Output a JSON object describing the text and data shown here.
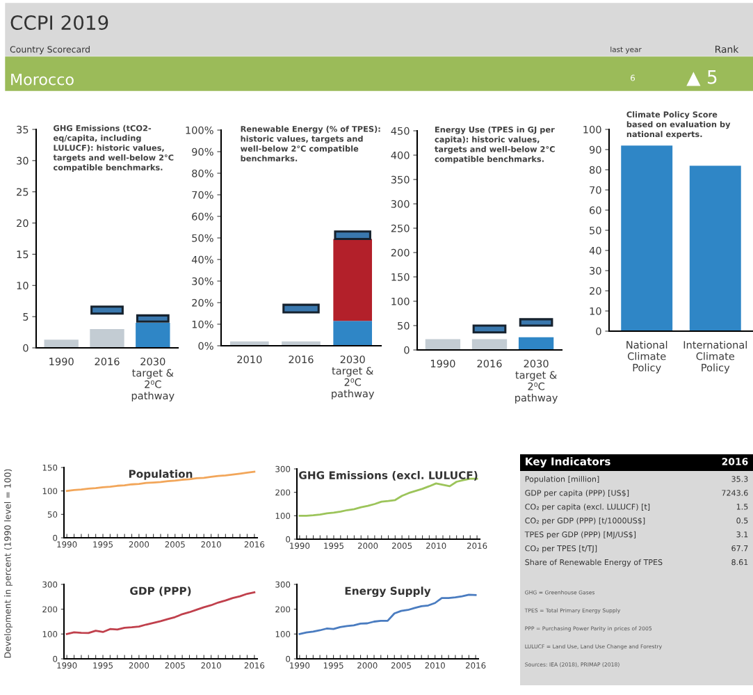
{
  "chart_data": [
    {
      "type": "other",
      "title": "CCPI 2019",
      "subtitle": "Country Scorecard",
      "annotations": [
        "Morocco",
        "last year",
        "6",
        "Rank",
        "▲ 5"
      ]
    },
    {
      "type": "bar",
      "title": "GHG Emissions (tCO2-\neq/capita, including\nLULUCF): historic values,\ntargets and well-below 2°C\ncompatible benchmarks.",
      "categories": [
        "1990",
        "2016",
        "2030\ntarget &\n2⁰C\npathway"
      ],
      "ylim": [
        0,
        35
      ],
      "yticks": [
        0,
        5,
        10,
        15,
        20,
        25,
        30,
        35
      ],
      "series": [
        {
          "color": "#c3ccd3",
          "values": [
            1.3,
            3.0,
            null
          ]
        },
        {
          "color": "#2f86c6",
          "values": [
            null,
            null,
            4.0
          ]
        },
        {
          "color": "#3a78ae",
          "values": [
            null,
            1.1,
            1.0
          ],
          "base": [
            null,
            5.5,
            4.2
          ]
        }
      ]
    },
    {
      "type": "bar",
      "title": "Renewable Energy (% of TPES):\nhistoric values, targets and\nwell-below 2°C compatible\nbenchmarks.",
      "categories": [
        "2010",
        "2016",
        "2030\ntarget &\n2⁰C\npathway"
      ],
      "ylim": [
        0,
        100
      ],
      "yticks": [
        {
          "value": 0,
          "label": "0%"
        },
        {
          "value": 10,
          "label": "10%"
        },
        {
          "value": 20,
          "label": "20%"
        },
        {
          "value": 30,
          "label": "30%"
        },
        {
          "value": 40,
          "label": "40%"
        },
        {
          "value": 50,
          "label": "50%"
        },
        {
          "value": 60,
          "label": "60%"
        },
        {
          "value": 70,
          "label": "70%"
        },
        {
          "value": 80,
          "label": "80%"
        },
        {
          "value": 90,
          "label": "90%"
        },
        {
          "value": 100,
          "label": "100%"
        }
      ],
      "series": [
        {
          "color": "#c3ccd3",
          "values": [
            2,
            2,
            null
          ]
        },
        {
          "color": "#2f86c6",
          "values": [
            null,
            null,
            11.5
          ]
        },
        {
          "color": "#b3202a",
          "values": [
            null,
            null,
            38
          ],
          "base": [
            null,
            null,
            11.5
          ]
        },
        {
          "color": "#3a78ae",
          "values": [
            null,
            3.5,
            3.5
          ],
          "base": [
            null,
            15.5,
            49.5
          ]
        }
      ]
    },
    {
      "type": "bar",
      "title": "Energy Use (TPES in GJ per\ncapita): historic values,\ntargets and well-below 2°C\ncompatible benchmarks.",
      "categories": [
        "1990",
        "2016",
        "2030\ntarget &\n2⁰C\npathway"
      ],
      "ylim": [
        0,
        450
      ],
      "yticks": [
        0,
        50,
        100,
        150,
        200,
        250,
        300,
        350,
        400,
        450
      ],
      "series": [
        {
          "color": "#c3ccd3",
          "values": [
            22,
            22,
            null
          ]
        },
        {
          "color": "#2f86c6",
          "values": [
            null,
            null,
            26
          ]
        },
        {
          "color": "#3a78ae",
          "values": [
            null,
            14,
            13
          ],
          "base": [
            null,
            36,
            50
          ]
        }
      ]
    },
    {
      "type": "bar",
      "title": "Climate Policy Score\nbased on evaluation by\nnational experts.",
      "categories": [
        "National\nClimate\nPolicy",
        "International\nClimate\nPolicy"
      ],
      "ylim": [
        0,
        100
      ],
      "yticks": [
        0,
        10,
        20,
        30,
        40,
        50,
        60,
        70,
        80,
        90,
        100
      ],
      "series": [
        {
          "color": "#2f86c6",
          "values": [
            92,
            82
          ]
        }
      ]
    },
    {
      "type": "line",
      "title": "Population",
      "ylabel": "Development in percent (1990 level = 100)",
      "x": [
        1990,
        1991,
        1992,
        1993,
        1994,
        1995,
        1996,
        1997,
        1998,
        1999,
        2000,
        2001,
        2002,
        2003,
        2004,
        2005,
        2006,
        2007,
        2008,
        2009,
        2010,
        2011,
        2012,
        2013,
        2014,
        2015,
        2016
      ],
      "xlim": [
        1989.6,
        2016.4
      ],
      "xticks": [
        1990,
        {
          "value": 1991,
          "label": null
        },
        {
          "value": 1992,
          "label": null
        },
        {
          "value": 1993,
          "label": null
        },
        {
          "value": 1994,
          "label": null
        },
        1995,
        {
          "value": 1996,
          "label": null
        },
        {
          "value": 1997,
          "label": null
        },
        {
          "value": 1998,
          "label": null
        },
        {
          "value": 1999,
          "label": null
        },
        2000,
        {
          "value": 2001,
          "label": null
        },
        {
          "value": 2002,
          "label": null
        },
        {
          "value": 2003,
          "label": null
        },
        {
          "value": 2004,
          "label": null
        },
        2005,
        {
          "value": 2006,
          "label": null
        },
        {
          "value": 2007,
          "label": null
        },
        {
          "value": 2008,
          "label": null
        },
        {
          "value": 2009,
          "label": null
        },
        2010,
        {
          "value": 2011,
          "label": null
        },
        {
          "value": 2012,
          "label": null
        },
        {
          "value": 2013,
          "label": null
        },
        {
          "value": 2014,
          "label": null
        },
        {
          "value": 2015,
          "label": null
        },
        2016
      ],
      "ylim": [
        0,
        150
      ],
      "yticks": [
        0,
        50,
        100,
        150
      ],
      "series": [
        {
          "color": "#f2a65a",
          "values": [
            100,
            102,
            103,
            105,
            106,
            108,
            109,
            111,
            112,
            114,
            115,
            117,
            118,
            119,
            121,
            122,
            124,
            125,
            127,
            128,
            130,
            132,
            133,
            135,
            137,
            139,
            141
          ]
        }
      ]
    },
    {
      "type": "line",
      "title": "GHG Emissions (excl. LULUCF)",
      "x": [
        1990,
        1991,
        1992,
        1993,
        1994,
        1995,
        1996,
        1997,
        1998,
        1999,
        2000,
        2001,
        2002,
        2003,
        2004,
        2005,
        2006,
        2007,
        2008,
        2009,
        2010,
        2011,
        2012,
        2013,
        2014,
        2015,
        2016
      ],
      "xlim": [
        1989.6,
        2016.4
      ],
      "xticks": [
        1990,
        {
          "value": 1991,
          "label": null
        },
        {
          "value": 1992,
          "label": null
        },
        {
          "value": 1993,
          "label": null
        },
        {
          "value": 1994,
          "label": null
        },
        1995,
        {
          "value": 1996,
          "label": null
        },
        {
          "value": 1997,
          "label": null
        },
        {
          "value": 1998,
          "label": null
        },
        {
          "value": 1999,
          "label": null
        },
        2000,
        {
          "value": 2001,
          "label": null
        },
        {
          "value": 2002,
          "label": null
        },
        {
          "value": 2003,
          "label": null
        },
        {
          "value": 2004,
          "label": null
        },
        2005,
        {
          "value": 2006,
          "label": null
        },
        {
          "value": 2007,
          "label": null
        },
        {
          "value": 2008,
          "label": null
        },
        {
          "value": 2009,
          "label": null
        },
        2010,
        {
          "value": 2011,
          "label": null
        },
        {
          "value": 2012,
          "label": null
        },
        {
          "value": 2013,
          "label": null
        },
        {
          "value": 2014,
          "label": null
        },
        {
          "value": 2015,
          "label": null
        },
        2016
      ],
      "ylim": [
        0,
        300
      ],
      "yticks": [
        0,
        100,
        200,
        300
      ],
      "series": [
        {
          "color": "#9cc45a",
          "values": [
            100,
            100,
            102,
            105,
            110,
            113,
            118,
            124,
            128,
            136,
            142,
            150,
            160,
            163,
            167,
            185,
            197,
            206,
            215,
            226,
            238,
            232,
            226,
            245,
            252,
            258,
            258
          ]
        }
      ]
    },
    {
      "type": "other",
      "title": "Key Indicators",
      "subtitle": "2016",
      "categories": [
        "Population [million]",
        "GDP per capita (PPP) [US$]",
        "CO₂ per capita (excl. LULUCF) [t]",
        "CO₂ per GDP (PPP) [t/1000US$]",
        "TPES per GDP (PPP) [MJ/US$]",
        "CO₂ per TPES [t/TJ]",
        "Share of Renewable Energy of TPES"
      ],
      "value_labels": [
        "35.3",
        "7243.6",
        "1.5",
        "0.5",
        "3.1",
        "67.7",
        "8.61"
      ],
      "annotations": [
        "GHG = Greenhouse Gases",
        "TPES = Total Primary Energy Supply",
        "PPP = Purchasing Power Parity in prices of 2005",
        "LULUCF = Land Use, Land Use Change and Forestry",
        "Sources: IEA (2018), PRIMAP (2018)"
      ]
    },
    {
      "type": "line",
      "title": "GDP (PPP)",
      "x": [
        1990,
        1991,
        1992,
        1993,
        1994,
        1995,
        1996,
        1997,
        1998,
        1999,
        2000,
        2001,
        2002,
        2003,
        2004,
        2005,
        2006,
        2007,
        2008,
        2009,
        2010,
        2011,
        2012,
        2013,
        2014,
        2015,
        2016
      ],
      "xlim": [
        1989.6,
        2016.4
      ],
      "xticks": [
        1990,
        {
          "value": 1991,
          "label": null
        },
        {
          "value": 1992,
          "label": null
        },
        {
          "value": 1993,
          "label": null
        },
        {
          "value": 1994,
          "label": null
        },
        1995,
        {
          "value": 1996,
          "label": null
        },
        {
          "value": 1997,
          "label": null
        },
        {
          "value": 1998,
          "label": null
        },
        {
          "value": 1999,
          "label": null
        },
        2000,
        {
          "value": 2001,
          "label": null
        },
        {
          "value": 2002,
          "label": null
        },
        {
          "value": 2003,
          "label": null
        },
        {
          "value": 2004,
          "label": null
        },
        2005,
        {
          "value": 2006,
          "label": null
        },
        {
          "value": 2007,
          "label": null
        },
        {
          "value": 2008,
          "label": null
        },
        {
          "value": 2009,
          "label": null
        },
        2010,
        {
          "value": 2011,
          "label": null
        },
        {
          "value": 2012,
          "label": null
        },
        {
          "value": 2013,
          "label": null
        },
        {
          "value": 2014,
          "label": null
        },
        {
          "value": 2015,
          "label": null
        },
        2016
      ],
      "ylim": [
        0,
        300
      ],
      "yticks": [
        0,
        100,
        200,
        300
      ],
      "series": [
        {
          "color": "#c0404c",
          "values": [
            100,
            107,
            105,
            104,
            113,
            108,
            120,
            118,
            125,
            127,
            130,
            138,
            145,
            152,
            160,
            168,
            180,
            188,
            198,
            208,
            216,
            227,
            235,
            245,
            252,
            262,
            268
          ]
        }
      ]
    },
    {
      "type": "line",
      "title": "Energy Supply",
      "x": [
        1990,
        1991,
        1992,
        1993,
        1994,
        1995,
        1996,
        1997,
        1998,
        1999,
        2000,
        2001,
        2002,
        2003,
        2004,
        2005,
        2006,
        2007,
        2008,
        2009,
        2010,
        2011,
        2012,
        2013,
        2014,
        2015,
        2016
      ],
      "xlim": [
        1989.6,
        2016.4
      ],
      "xticks": [
        1990,
        {
          "value": 1991,
          "label": null
        },
        {
          "value": 1992,
          "label": null
        },
        {
          "value": 1993,
          "label": null
        },
        {
          "value": 1994,
          "label": null
        },
        1995,
        {
          "value": 1996,
          "label": null
        },
        {
          "value": 1997,
          "label": null
        },
        {
          "value": 1998,
          "label": null
        },
        {
          "value": 1999,
          "label": null
        },
        2000,
        {
          "value": 2001,
          "label": null
        },
        {
          "value": 2002,
          "label": null
        },
        {
          "value": 2003,
          "label": null
        },
        {
          "value": 2004,
          "label": null
        },
        2005,
        {
          "value": 2006,
          "label": null
        },
        {
          "value": 2007,
          "label": null
        },
        {
          "value": 2008,
          "label": null
        },
        {
          "value": 2009,
          "label": null
        },
        2010,
        {
          "value": 2011,
          "label": null
        },
        {
          "value": 2012,
          "label": null
        },
        {
          "value": 2013,
          "label": null
        },
        {
          "value": 2014,
          "label": null
        },
        {
          "value": 2015,
          "label": null
        },
        2016
      ],
      "ylim": [
        0,
        300
      ],
      "yticks": [
        0,
        100,
        200,
        300
      ],
      "series": [
        {
          "color": "#4a7cc0",
          "values": [
            100,
            106,
            110,
            115,
            122,
            120,
            128,
            132,
            135,
            142,
            143,
            150,
            153,
            153,
            183,
            193,
            197,
            205,
            212,
            215,
            225,
            245,
            245,
            248,
            252,
            258,
            257
          ]
        }
      ]
    }
  ]
}
